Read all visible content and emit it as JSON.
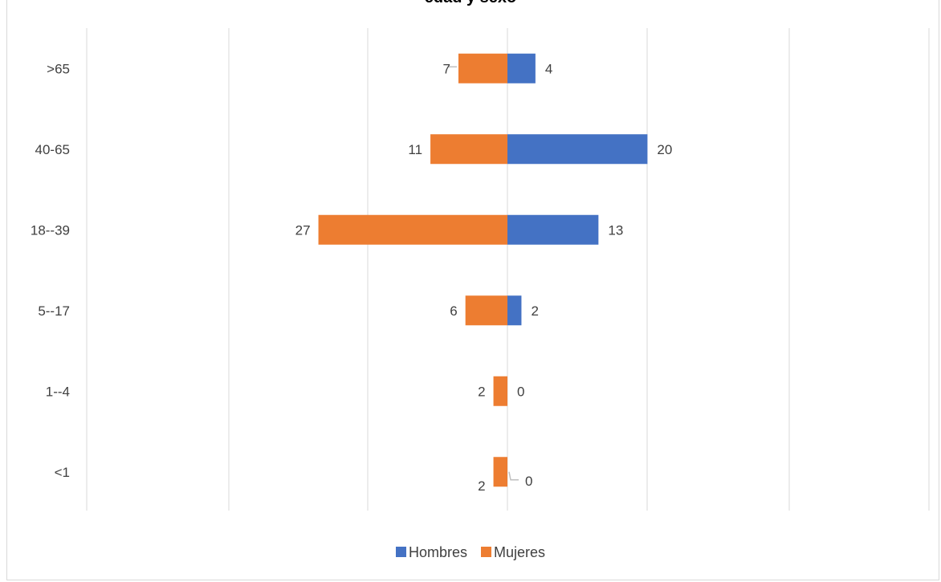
{
  "chart_data": {
    "type": "bar",
    "orientation": "horizontal",
    "title": "edad y sexo",
    "categories": [
      ">65",
      "40-65",
      "18--39",
      "5--17",
      "1--4",
      "<1"
    ],
    "series": [
      {
        "name": "Hombres",
        "values": [
          4,
          20,
          13,
          2,
          0,
          0
        ],
        "color": "#4472c4"
      },
      {
        "name": "Mujeres",
        "values": [
          7,
          11,
          27,
          6,
          2,
          2
        ],
        "color": "#ed7d31"
      }
    ],
    "grid": true,
    "legend_position": "bottom"
  }
}
